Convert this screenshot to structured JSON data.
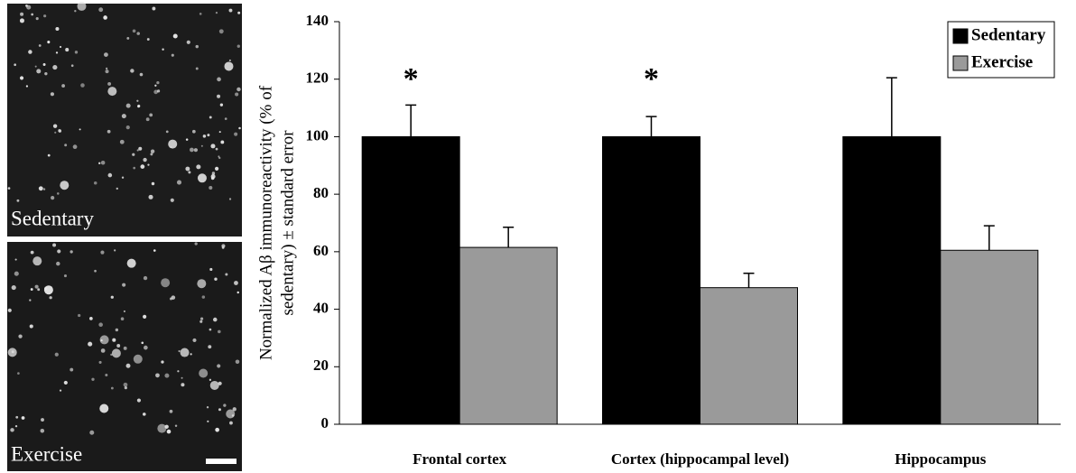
{
  "micrographs": [
    "Sedentary",
    "Exercise"
  ],
  "chart_data": {
    "type": "bar",
    "ylabel": [
      "Normalized Aβ immunoreactivity (% of",
      "sedentary) ± standard error"
    ],
    "categories": [
      "Frontal cortex",
      "Cortex (hippocampal level)",
      "Hippocampus"
    ],
    "series": [
      {
        "name": "Sedentary",
        "color": "#000000",
        "values": [
          100,
          100,
          100
        ],
        "errors": [
          11,
          7,
          20.5
        ]
      },
      {
        "name": "Exercise",
        "color": "#9a9a9a",
        "values": [
          61.5,
          47.5,
          60.5
        ],
        "errors": [
          7,
          5,
          8.5
        ]
      }
    ],
    "significance": [
      "*",
      "*",
      null
    ],
    "ylim": [
      0,
      140
    ],
    "yticks": [
      0,
      20,
      40,
      60,
      80,
      100,
      120,
      140
    ],
    "legend": "upper right"
  }
}
